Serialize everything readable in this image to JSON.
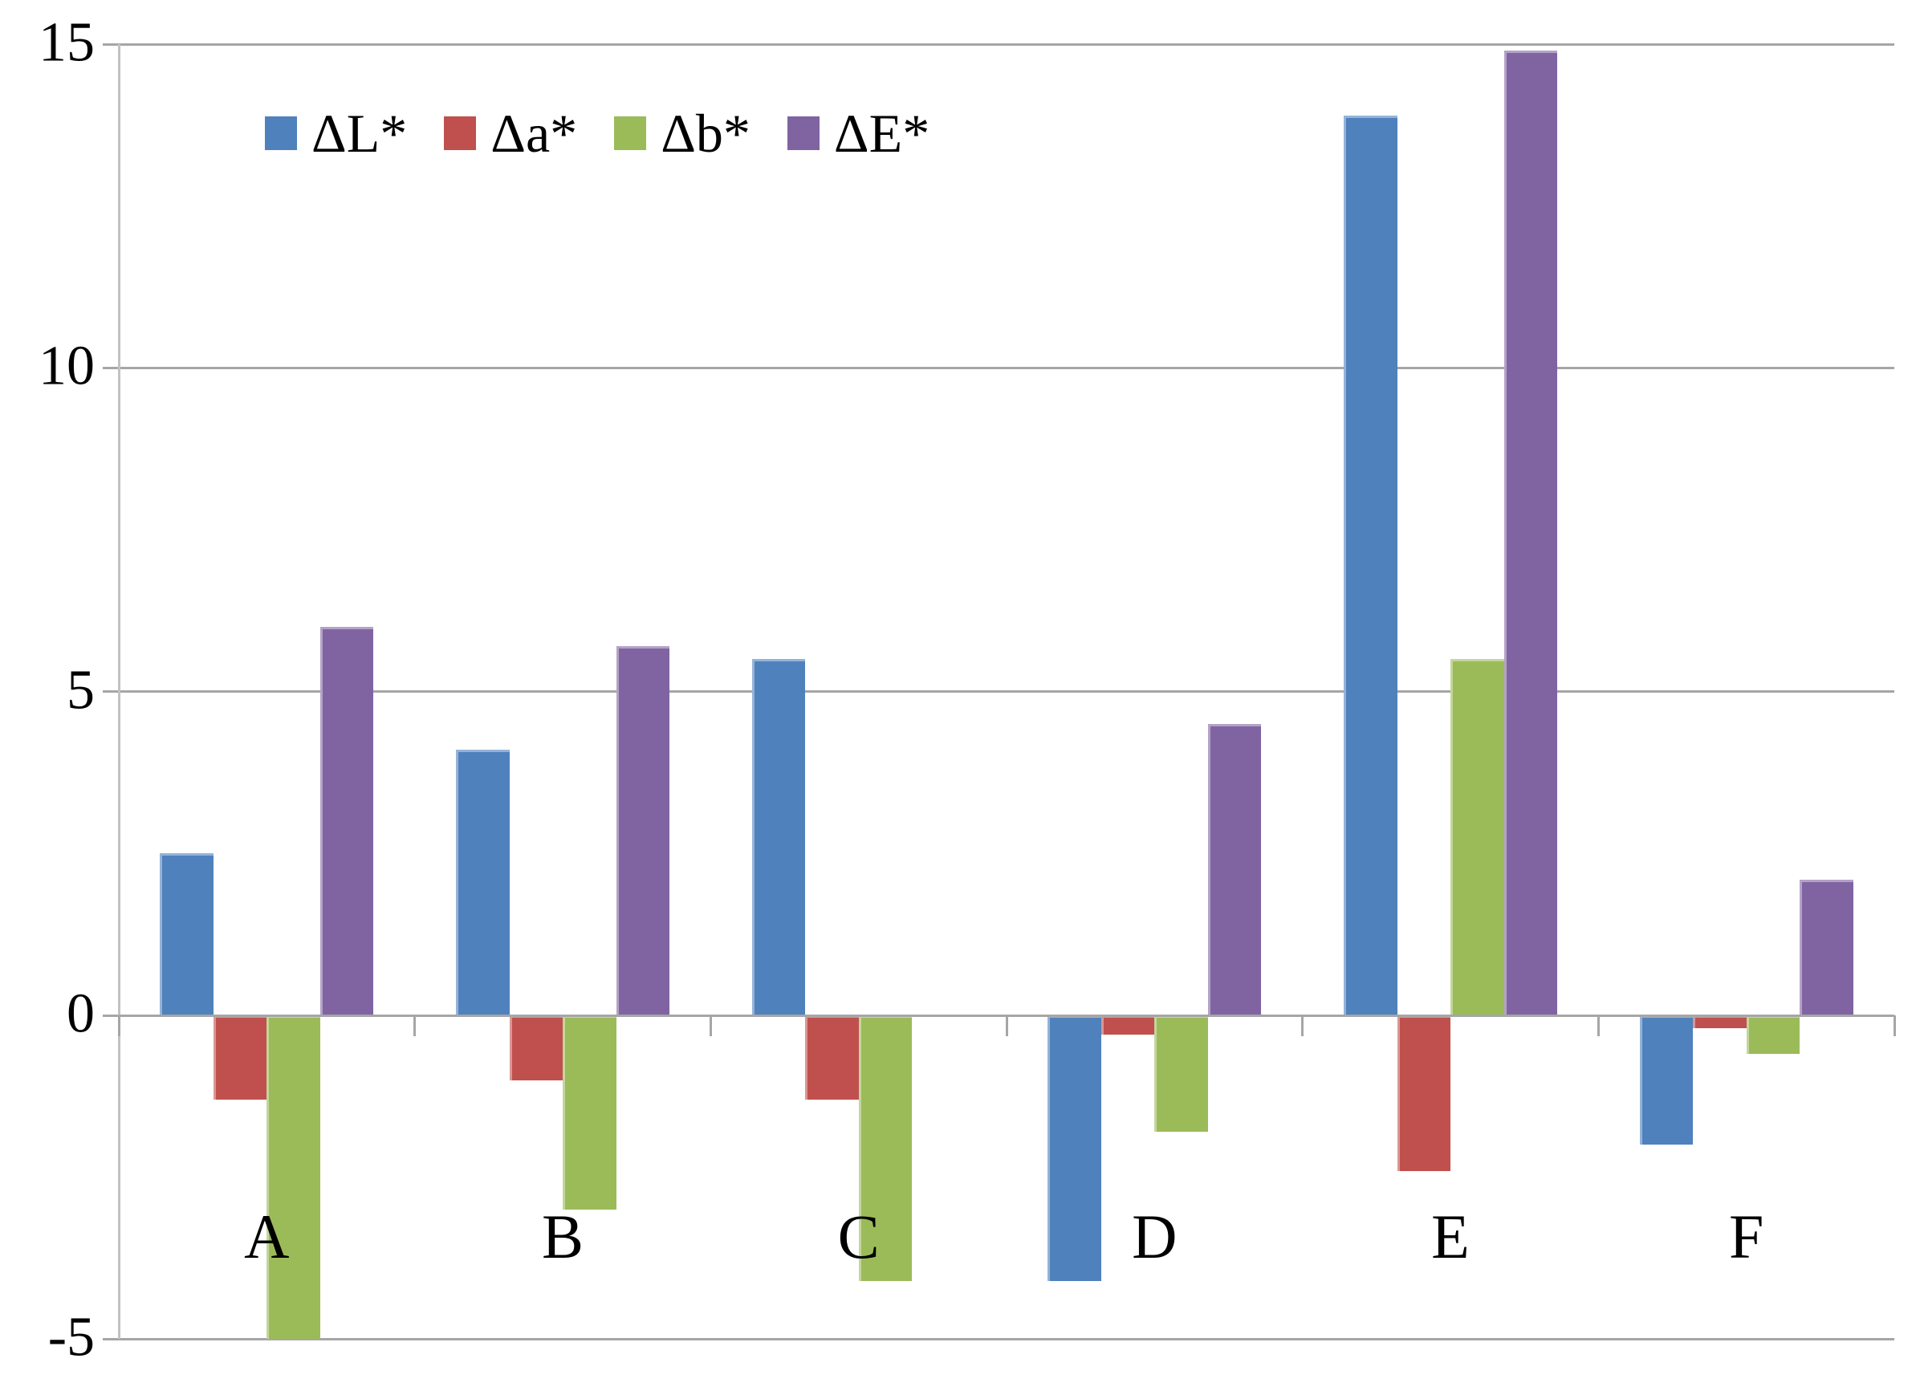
{
  "chart_data": {
    "type": "bar",
    "title": "",
    "xlabel": "",
    "ylabel": "",
    "categories": [
      "A",
      "B",
      "C",
      "D",
      "E",
      "F"
    ],
    "series": [
      {
        "name": "ΔL*",
        "color": "#4F81BD",
        "values": [
          2.5,
          4.1,
          5.5,
          -4.1,
          13.9,
          -2.0
        ]
      },
      {
        "name": "Δa*",
        "color": "#C0504D",
        "values": [
          -1.3,
          -1.0,
          -1.3,
          -0.3,
          -2.4,
          -0.2
        ]
      },
      {
        "name": "Δb*",
        "color": "#9BBB59",
        "values": [
          -5.0,
          -3.0,
          -4.1,
          -1.8,
          5.5,
          -0.6
        ]
      },
      {
        "name": "ΔE*",
        "color": "#8064A2",
        "values": [
          6.0,
          5.7,
          0,
          4.5,
          14.9,
          2.1
        ]
      }
    ],
    "ylim": [
      -5,
      15
    ],
    "yticks": [
      "15",
      "10",
      "5",
      "0",
      "-5"
    ],
    "ytick_values": [
      15,
      10,
      5,
      0,
      -5
    ],
    "grid": true,
    "legend_position": "top-left-inside",
    "missing_bars": [
      {
        "category": "C",
        "series": "ΔE*"
      }
    ],
    "colors": {
      "gridline": "#a6a6a6",
      "axis": "#c2c2c2",
      "text": "#000000",
      "background": "#ffffff"
    }
  }
}
